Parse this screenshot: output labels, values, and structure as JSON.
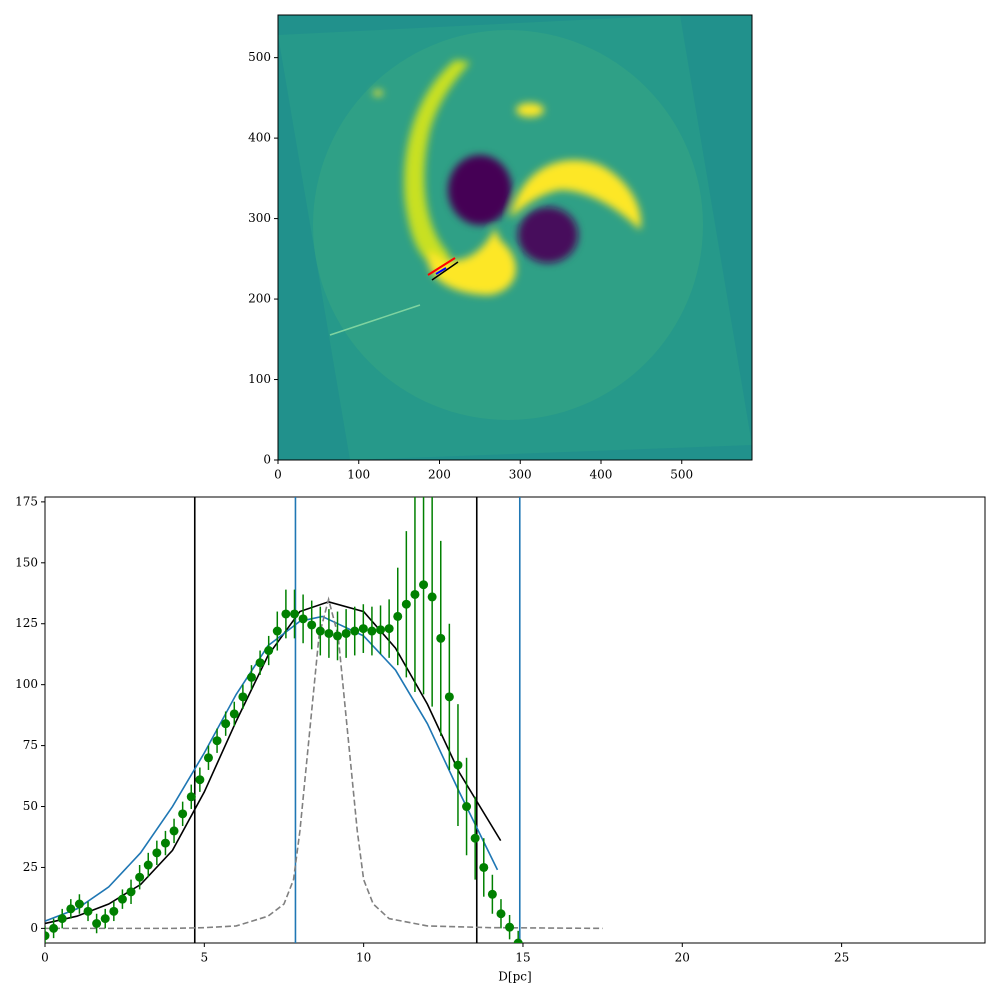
{
  "chart_data": [
    {
      "type": "image",
      "xlim": [
        0,
        587
      ],
      "ylim": [
        0,
        553
      ],
      "xticks": [
        0,
        100,
        200,
        300,
        400,
        500
      ],
      "yticks": [
        0,
        100,
        200,
        300,
        400,
        500
      ]
    },
    {
      "type": "errorbar",
      "xlabel": "D[pc]",
      "xlim": [
        0,
        29.5
      ],
      "ylim": [
        -6,
        177
      ],
      "xticks": [
        0,
        5,
        10,
        15,
        20,
        25
      ],
      "yticks": [
        0,
        25,
        50,
        75,
        100,
        125,
        150,
        175
      ],
      "points": {
        "color": "#008000",
        "x": [
          0,
          0.27,
          0.54,
          0.81,
          1.08,
          1.35,
          1.62,
          1.89,
          2.16,
          2.43,
          2.7,
          2.97,
          3.24,
          3.51,
          3.78,
          4.05,
          4.32,
          4.59,
          4.86,
          5.13,
          5.4,
          5.67,
          5.94,
          6.21,
          6.48,
          6.75,
          7.02,
          7.29,
          7.56,
          7.83,
          8.1,
          8.37,
          8.64,
          8.91,
          9.18,
          9.45,
          9.72,
          9.99,
          10.26,
          10.53,
          10.8,
          11.07,
          11.34,
          11.61,
          11.88,
          12.15,
          12.42,
          12.69,
          12.96,
          13.23,
          13.5,
          13.77,
          14.04,
          14.31,
          14.58,
          14.85
        ],
        "values": [
          -3,
          0,
          4,
          8,
          10,
          7,
          2,
          4,
          7,
          12,
          15,
          21,
          26,
          31,
          35,
          40,
          47,
          54,
          61,
          70,
          77,
          84,
          88,
          95,
          103,
          109,
          114,
          122,
          129,
          129,
          127,
          124.5,
          122,
          121,
          120,
          121,
          122,
          123,
          122,
          122.5,
          123,
          128,
          133,
          137,
          141,
          136,
          119,
          95,
          67,
          50,
          37,
          25,
          14,
          6,
          0.5,
          -6
        ],
        "errors": [
          4,
          4,
          4,
          4,
          4,
          4,
          4,
          4,
          4,
          4,
          5,
          5,
          5,
          5,
          5,
          5,
          5,
          5,
          5,
          5,
          5,
          5,
          5,
          5,
          5,
          5,
          6,
          8,
          10,
          10,
          10,
          10,
          10,
          10,
          10,
          10,
          10,
          10,
          10,
          10,
          12,
          20,
          30,
          40,
          45,
          45,
          40,
          30,
          25,
          20,
          17,
          12,
          8,
          6,
          5,
          5
        ]
      },
      "lines": [
        {
          "color": "#000000",
          "dash": false,
          "x": [
            0,
            1,
            2,
            3,
            4,
            5,
            6,
            7,
            8,
            8.9,
            10,
            11,
            12,
            13,
            14.3
          ],
          "values": [
            2,
            5,
            10,
            18,
            32,
            56,
            85,
            112,
            130,
            134,
            130,
            115,
            92,
            64,
            36
          ]
        },
        {
          "color": "#1f77b4",
          "dash": false,
          "x": [
            0,
            1,
            2,
            3,
            4,
            5,
            6,
            7,
            8,
            8.7,
            10,
            11,
            12,
            13,
            14.2
          ],
          "values": [
            3,
            8,
            17,
            31,
            50,
            72,
            96,
            116,
            126,
            128,
            120,
            106,
            84,
            56,
            24
          ]
        },
        {
          "color": "#808080",
          "dash": true,
          "x": [
            0,
            2,
            4,
            5,
            6,
            7,
            7.5,
            7.8,
            8,
            8.3,
            8.6,
            8.9,
            9.2,
            9.5,
            9.8,
            10,
            10.3,
            10.8,
            12,
            14,
            17.5
          ],
          "values": [
            0,
            0,
            0,
            0.3,
            1,
            5,
            10,
            20,
            40,
            80,
            120,
            135,
            120,
            80,
            40,
            20,
            10,
            4,
            1,
            0.3,
            0
          ]
        }
      ],
      "vlines": [
        {
          "value": 4.7,
          "color": "#000000"
        },
        {
          "value": 13.55,
          "color": "#000000"
        },
        {
          "value": 7.86,
          "color": "#1f77b4"
        },
        {
          "value": 14.9,
          "color": "#1f77b4"
        }
      ]
    }
  ]
}
